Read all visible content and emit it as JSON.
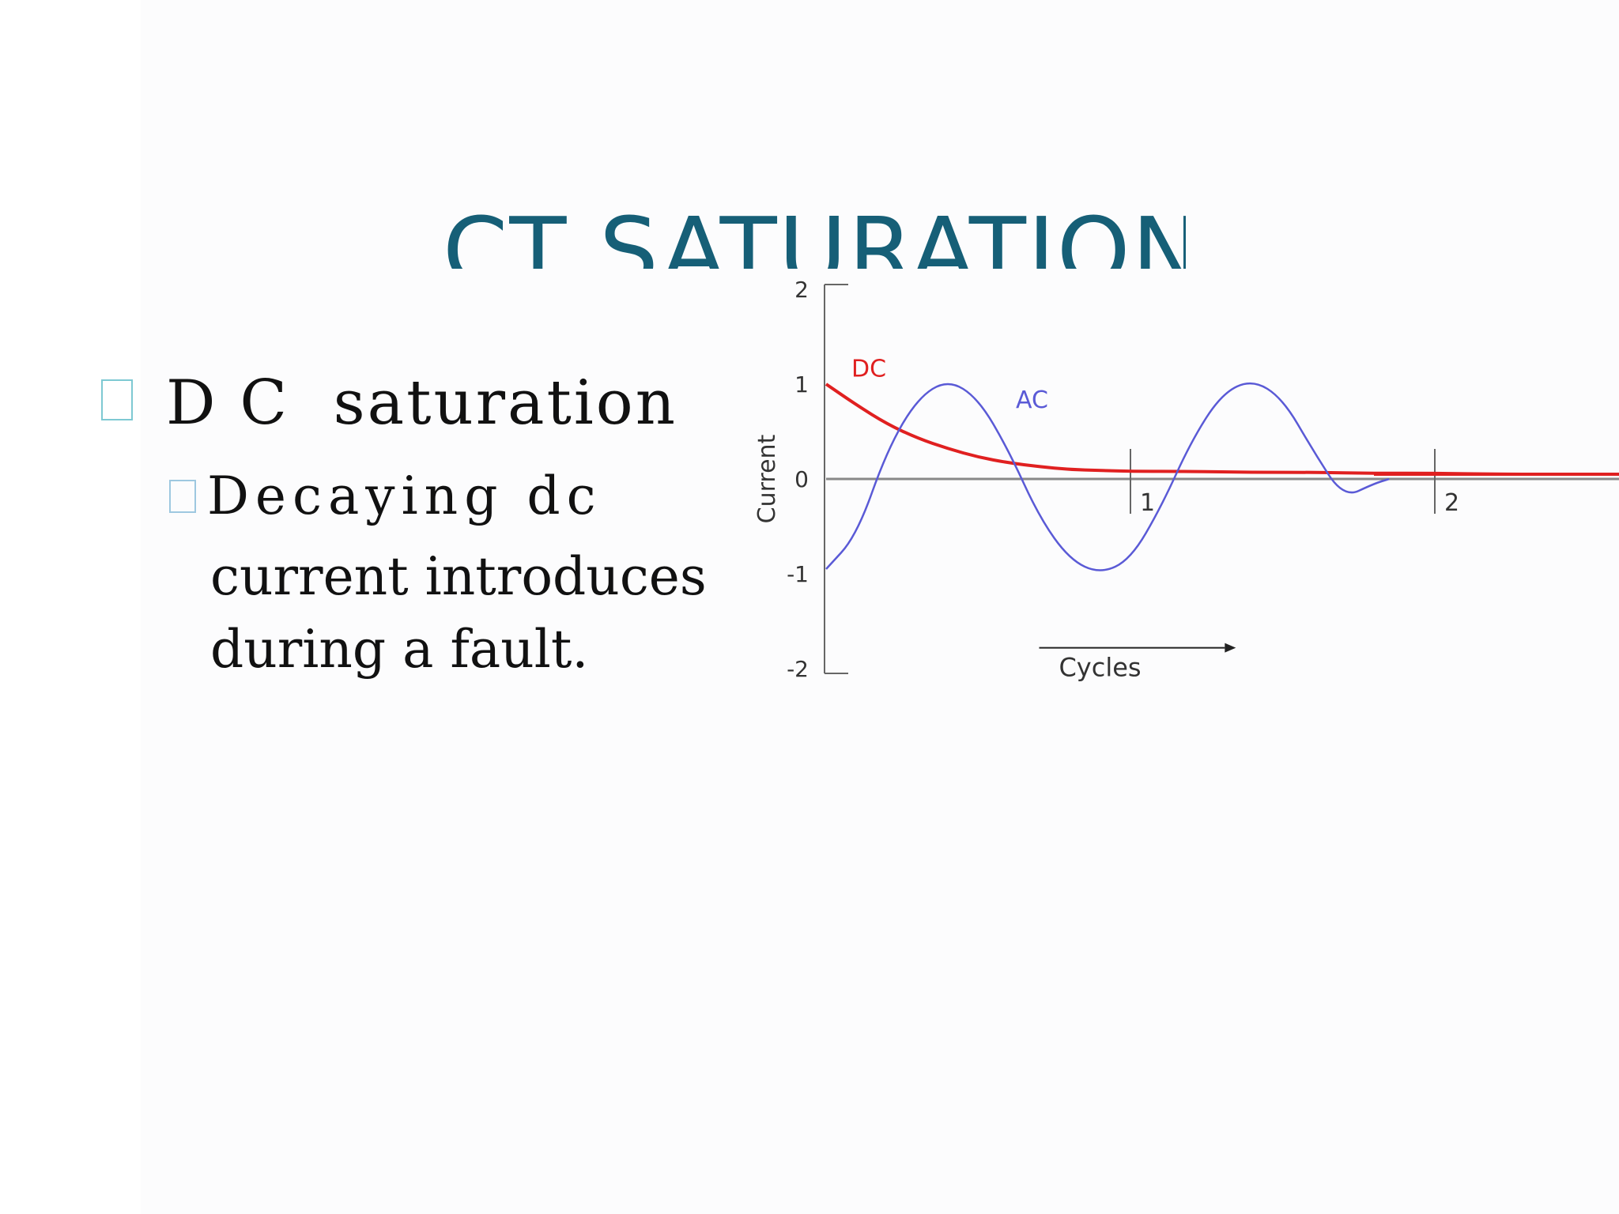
{
  "slide": {
    "title": "CT SATURATION",
    "bullet_1": "D C  saturation",
    "bullet_2_first_line": "Decaying dc",
    "bullet_2_lines": [
      "current introduces",
      "during a fault."
    ],
    "colors": {
      "title": "#165f77",
      "bullet_marker": "#7ec9d3",
      "text": "#111111"
    }
  },
  "chart_data": {
    "type": "line",
    "title": "",
    "xlabel": "Cycles",
    "ylabel": "Current",
    "xlim": [
      0,
      2.5
    ],
    "ylim": [
      -2,
      2
    ],
    "y_ticks": [
      "2",
      "1",
      "0",
      "-1",
      "-2"
    ],
    "x_markers": [
      "1",
      "2"
    ],
    "series": [
      {
        "name": "DC",
        "color": "#e02020",
        "x": [
          0,
          0.1,
          0.2,
          0.3,
          0.4,
          0.5,
          0.6,
          0.7,
          0.8,
          0.9,
          1.0,
          1.2,
          1.4,
          1.6,
          1.8,
          2.0,
          2.2,
          2.5
        ],
        "values": [
          1.0,
          0.78,
          0.58,
          0.43,
          0.32,
          0.23,
          0.17,
          0.13,
          0.1,
          0.09,
          0.08,
          0.08,
          0.07,
          0.07,
          0.06,
          0.06,
          0.05,
          0.05
        ]
      },
      {
        "name": "AC",
        "color": "#5a5ad6",
        "x": [
          0,
          0.1,
          0.2,
          0.3,
          0.4,
          0.5,
          0.6,
          0.7,
          0.8,
          0.9,
          1.0,
          1.1,
          1.2,
          1.3,
          1.4,
          1.5,
          1.6,
          1.7,
          1.8,
          1.85
        ],
        "values": [
          -0.95,
          -0.6,
          0.3,
          0.85,
          1.05,
          0.85,
          0.3,
          -0.4,
          -0.85,
          -1.0,
          -0.85,
          -0.3,
          0.4,
          0.9,
          1.05,
          0.85,
          0.3,
          -0.2,
          -0.05,
          0.0
        ]
      }
    ]
  }
}
